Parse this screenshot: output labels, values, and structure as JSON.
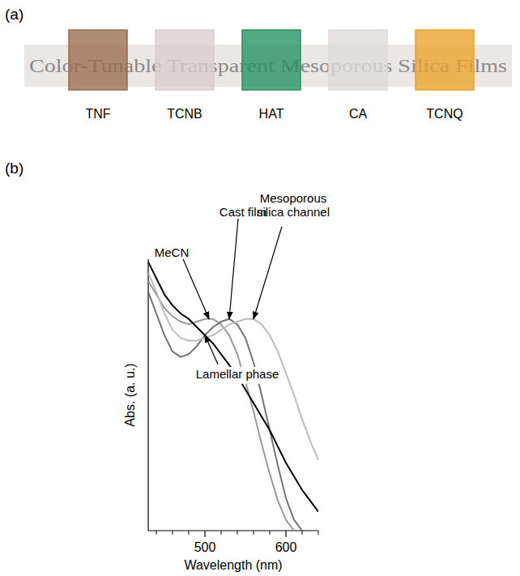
{
  "panel_a": {
    "label": "(a)",
    "banner": "Color-Tunable Transparent Mesoporous Silica Films",
    "films": [
      {
        "name": "TNF",
        "color": "#9a6a4c"
      },
      {
        "name": "TCNB",
        "color": "#d9cdcf"
      },
      {
        "name": "HAT",
        "color": "#23915f"
      },
      {
        "name": "CA",
        "color": "#dedad8"
      },
      {
        "name": "TCNQ",
        "color": "#eaa22a"
      }
    ]
  },
  "panel_b": {
    "label": "(b)"
  },
  "chart_data": {
    "type": "line",
    "x_label": "Wavelength (nm)",
    "y_label": "Abs. (a. u.)",
    "x": [
      430,
      440,
      450,
      460,
      470,
      480,
      490,
      500,
      510,
      520,
      530,
      540,
      550,
      560,
      570,
      580,
      590,
      600,
      610,
      620,
      630,
      640
    ],
    "series": [
      {
        "name": "MeCN",
        "color": "#9a9a9a",
        "values": [
          0.92,
          0.87,
          0.82,
          0.79,
          0.77,
          0.76,
          0.77,
          0.78,
          0.78,
          0.76,
          0.72,
          0.65,
          0.55,
          0.44,
          0.32,
          0.21,
          0.11,
          0.04,
          0.0,
          null,
          null,
          null
        ]
      },
      {
        "name": "Cast film",
        "color": "#747474",
        "values": [
          0.88,
          0.8,
          0.72,
          0.66,
          0.64,
          0.65,
          0.68,
          0.72,
          0.75,
          0.77,
          0.78,
          0.76,
          0.71,
          0.62,
          0.5,
          0.37,
          0.24,
          0.12,
          0.04,
          0.0,
          null,
          null
        ]
      },
      {
        "name": "Mesoporous silica channel",
        "color": "#bdbdbd",
        "values": [
          0.95,
          0.88,
          0.8,
          0.74,
          0.71,
          0.7,
          0.7,
          0.71,
          0.72,
          0.74,
          0.76,
          0.77,
          0.78,
          0.78,
          0.76,
          0.72,
          0.66,
          0.58,
          0.5,
          0.41,
          0.33,
          0.26
        ]
      },
      {
        "name": "Lamellar phase",
        "color": "#000000",
        "values": [
          0.99,
          0.93,
          0.87,
          0.83,
          0.8,
          0.78,
          0.75,
          0.72,
          0.69,
          0.65,
          0.61,
          0.57,
          0.52,
          0.47,
          0.42,
          0.37,
          0.31,
          0.25,
          0.2,
          0.15,
          0.11,
          0.07
        ]
      }
    ],
    "xlim": [
      430,
      640
    ],
    "ylim": [
      0,
      1
    ],
    "xticks": [
      500,
      600
    ],
    "x_minor_ticks": [
      440,
      460,
      480,
      520,
      540,
      560,
      580,
      620,
      640
    ],
    "tick_labels": "x",
    "grid": false,
    "annotations": [
      {
        "text": "MeCN",
        "x": 505,
        "y": 0.78
      },
      {
        "text": "Cast film",
        "x": 530,
        "y": 0.78
      },
      {
        "text": "Mesoporous silica channel",
        "x": 560,
        "y": 0.78
      },
      {
        "text": "Lamellar phase",
        "x": 500,
        "y": 0.72
      }
    ]
  }
}
